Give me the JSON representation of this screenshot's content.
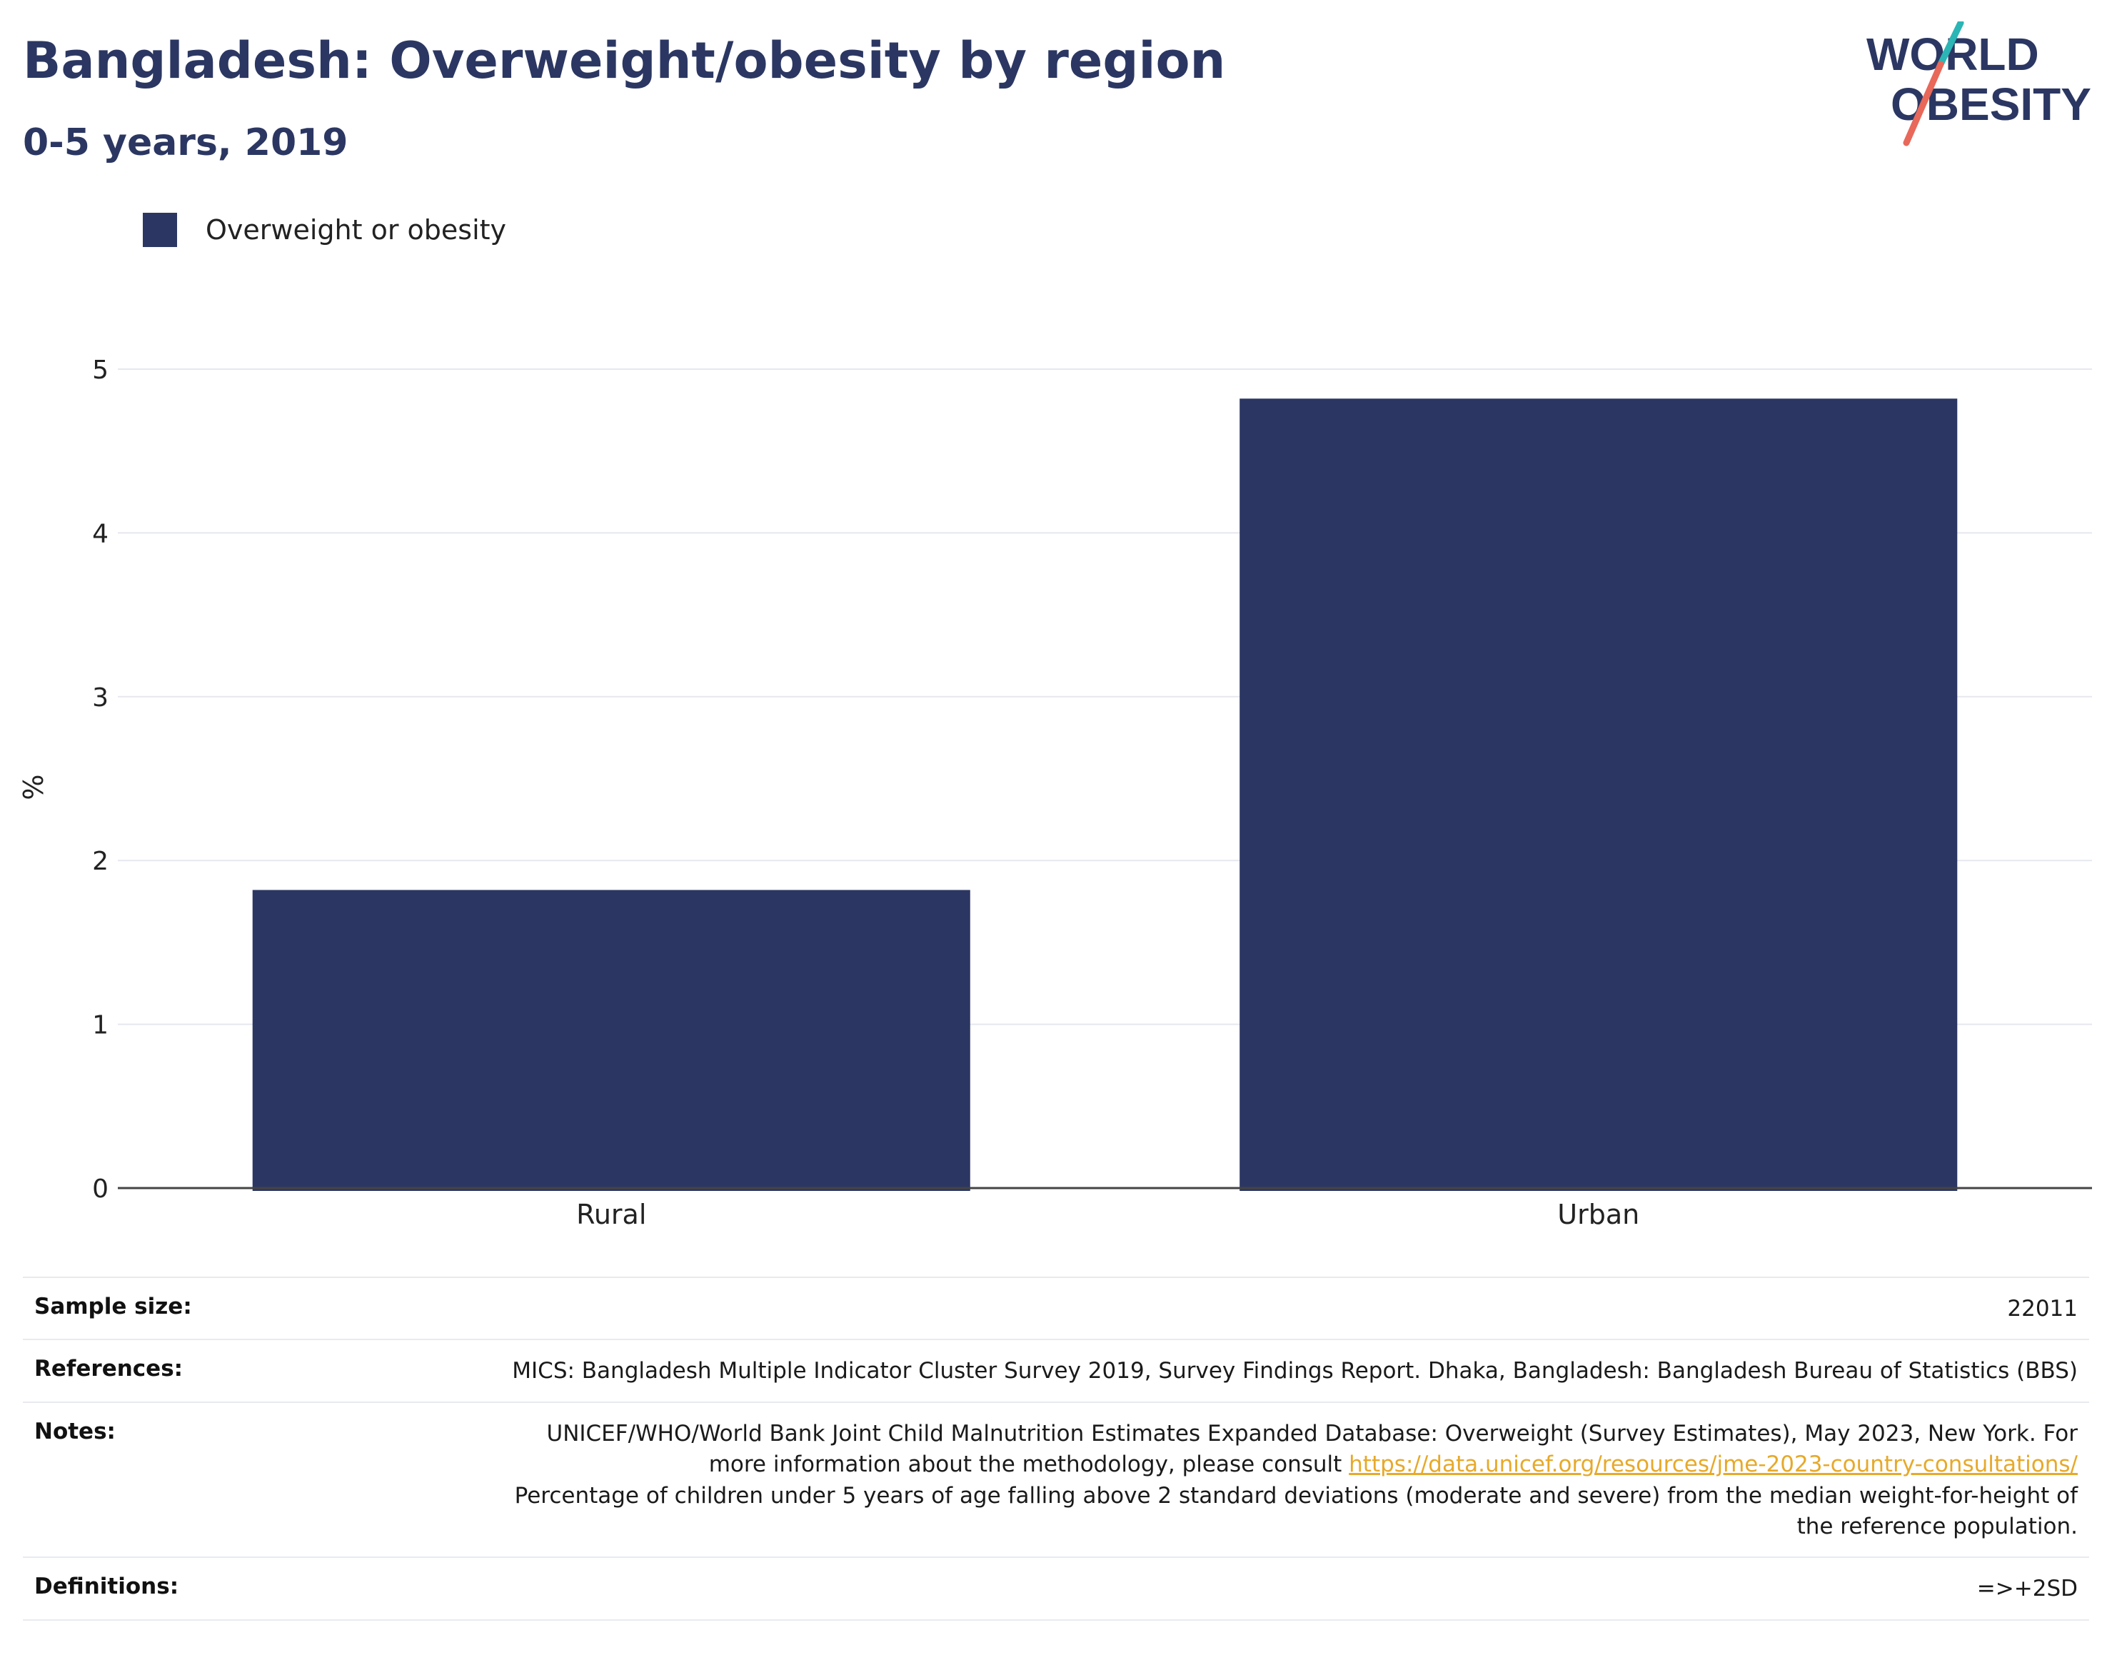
{
  "header": {
    "title": "Bangladesh: Overweight/obesity by region",
    "subtitle": "0-5 years, 2019"
  },
  "logo": {
    "line1": "WORLD",
    "line2": "OBESITY",
    "colors": {
      "text": "#2b3762",
      "slash_top": "#2bb5b5",
      "slash_bottom": "#e8685a"
    }
  },
  "legend": {
    "label": "Overweight or obesity",
    "color": "#2b3762"
  },
  "chart_data": {
    "type": "bar",
    "categories": [
      "Rural",
      "Urban"
    ],
    "series": [
      {
        "name": "Overweight or obesity",
        "values": [
          1.82,
          4.82
        ],
        "color": "#2b3762"
      }
    ],
    "xlabel": "",
    "ylabel": "%",
    "ylim": [
      0,
      5
    ],
    "yticks": [
      0,
      1,
      2,
      3,
      4,
      5
    ],
    "grid": true
  },
  "meta": {
    "sample_size": {
      "label": "Sample size:",
      "value": "22011"
    },
    "references": {
      "label": "References:",
      "value": "MICS: Bangladesh Multiple Indicator Cluster Survey 2019, Survey Findings Report. Dhaka, Bangladesh: Bangladesh Bureau of Statistics (BBS)"
    },
    "notes": {
      "label": "Notes:",
      "text_before": "UNICEF/WHO/World Bank Joint Child Malnutrition Estimates Expanded Database: Overweight (Survey Estimates), May 2023, New York. For more information about the methodology, please consult ",
      "link": "https://data.unicef.org/resources/jme-2023-country-consultations/",
      "text_after": "Percentage of children under 5 years of age falling above 2 standard deviations (moderate and severe) from the median weight-for-height of the reference population."
    },
    "definitions": {
      "label": "Definitions:",
      "value": "=>+2SD"
    }
  }
}
